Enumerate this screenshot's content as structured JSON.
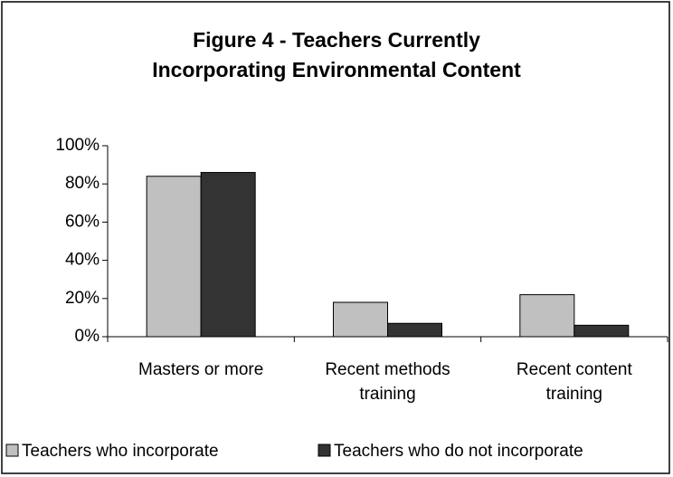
{
  "chart_data": {
    "type": "bar",
    "title": "Figure 4 - Teachers Currently Incorporating Environmental Content",
    "categories": [
      "Masters or more",
      "Recent methods training",
      "Recent content training"
    ],
    "series": [
      {
        "name": "Teachers who incorporate",
        "color": "#c0c0c0",
        "values": [
          84,
          18,
          22
        ]
      },
      {
        "name": "Teachers who do not incorporate",
        "color": "#333333",
        "values": [
          86,
          7,
          6
        ]
      }
    ],
    "ylim": [
      0,
      100
    ],
    "yticks": [
      {
        "value": 0,
        "label": "0%"
      },
      {
        "value": 20,
        "label": "20%"
      },
      {
        "value": 40,
        "label": "40%"
      },
      {
        "value": 60,
        "label": "60%"
      },
      {
        "value": 80,
        "label": "80%"
      },
      {
        "value": 100,
        "label": "100%"
      }
    ],
    "grid": false,
    "legend": "bottom"
  }
}
